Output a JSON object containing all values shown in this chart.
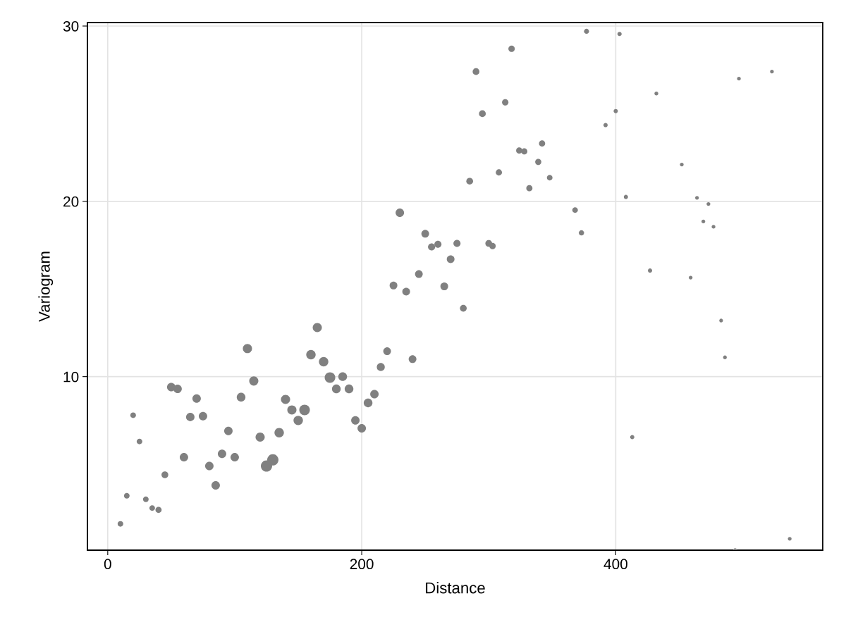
{
  "chart_data": {
    "type": "bubble",
    "xlabel": "Distance",
    "ylabel": "Variogram",
    "xlim": [
      -16,
      563
    ],
    "ylim": [
      0.1,
      30.2
    ],
    "xticks": [
      0,
      200,
      400
    ],
    "yticks": [
      10,
      20,
      30
    ],
    "grid": true,
    "marker": "circle",
    "series": [
      {
        "color": "#808080",
        "x": [
          10,
          15,
          20,
          25,
          30,
          35,
          40,
          45,
          50,
          55,
          60,
          65,
          70,
          75,
          80,
          85,
          90,
          95,
          100,
          105,
          110,
          115,
          120,
          125,
          130,
          135,
          140,
          145,
          150,
          155,
          160,
          165,
          170,
          175,
          180,
          185,
          190,
          195,
          200,
          205,
          210,
          215,
          220,
          225,
          230,
          235,
          240,
          245,
          250,
          255,
          260,
          265,
          270,
          275,
          280,
          285,
          290,
          295,
          300,
          303,
          308,
          313,
          318,
          324,
          328,
          332,
          339,
          342,
          348,
          368,
          373,
          377,
          392,
          400,
          403,
          408,
          413,
          427,
          432,
          452,
          459,
          464,
          469,
          473,
          477,
          483,
          486,
          494,
          497,
          523,
          537
        ],
        "values": [
          1.6,
          3.2,
          7.8,
          6.3,
          3.0,
          2.5,
          2.4,
          4.4,
          9.4,
          9.3,
          5.4,
          7.7,
          8.75,
          7.75,
          4.9,
          3.8,
          5.6,
          6.9,
          5.4,
          8.83,
          11.6,
          9.75,
          6.55,
          4.9,
          5.25,
          6.8,
          8.7,
          8.1,
          7.5,
          8.1,
          11.25,
          12.8,
          10.85,
          9.95,
          9.3,
          10.0,
          9.3,
          7.5,
          7.05,
          8.5,
          9.0,
          10.55,
          11.45,
          15.2,
          19.35,
          14.85,
          11.0,
          15.85,
          18.15,
          17.4,
          17.55,
          15.15,
          16.7,
          17.6,
          13.9,
          21.15,
          27.4,
          25.0,
          17.6,
          17.45,
          21.65,
          25.65,
          28.7,
          22.9,
          22.85,
          20.75,
          22.25,
          23.3,
          21.35,
          19.5,
          18.2,
          29.7,
          24.35,
          25.15,
          29.55,
          20.25,
          6.55,
          16.05,
          26.15,
          22.1,
          15.65,
          20.2,
          18.85,
          19.85,
          18.55,
          13.2,
          11.1,
          0.1,
          27.0,
          27.4,
          0.75
        ],
        "sizes": [
          0.25,
          0.25,
          0.25,
          0.25,
          0.25,
          0.25,
          0.3,
          0.36,
          0.56,
          0.56,
          0.56,
          0.56,
          0.56,
          0.56,
          0.56,
          0.56,
          0.56,
          0.56,
          0.56,
          0.6,
          0.66,
          0.66,
          0.66,
          1,
          1,
          0.7,
          0.66,
          0.66,
          0.7,
          0.88,
          0.7,
          0.66,
          0.7,
          0.88,
          0.6,
          0.6,
          0.6,
          0.56,
          0.56,
          0.6,
          0.56,
          0.5,
          0.47,
          0.47,
          0.56,
          0.47,
          0.47,
          0.47,
          0.47,
          0.4,
          0.4,
          0.47,
          0.47,
          0.4,
          0.36,
          0.36,
          0.36,
          0.36,
          0.36,
          0.32,
          0.3,
          0.32,
          0.32,
          0.3,
          0.3,
          0.3,
          0.3,
          0.3,
          0.25,
          0.25,
          0.22,
          0.2,
          0.14,
          0.14,
          0.14,
          0.14,
          0.14,
          0.14,
          0.12,
          0.11,
          0.11,
          0.11,
          0.11,
          0.11,
          0.11,
          0.11,
          0.11,
          0.11,
          0.11,
          0.11,
          0.11
        ]
      }
    ]
  }
}
